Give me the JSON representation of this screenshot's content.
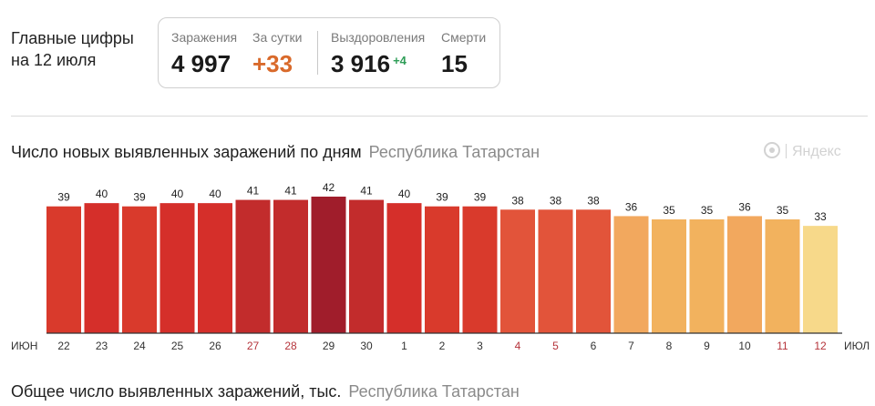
{
  "headline": {
    "line1": "Главные цифры",
    "line2": "на 12 июля"
  },
  "stats": {
    "infections": {
      "label": "Заражения",
      "value": "4 997"
    },
    "per_day": {
      "label": "За сутки",
      "value": "+33"
    },
    "recovered": {
      "label": "Выздоровления",
      "value": "3 916",
      "delta": "+4"
    },
    "deaths": {
      "label": "Смерти",
      "value": "15"
    }
  },
  "chart_header": {
    "title": "Число новых выявленных заражений по дням",
    "region": "Республика Татарстан"
  },
  "brand": {
    "name": "Яндекс"
  },
  "bottom_header": {
    "title": "Общее число выявленных заражений, тыс.",
    "region": "Республика Татарстан"
  },
  "chart_data": {
    "type": "bar",
    "month_start_label": "ИЮН",
    "month_end_label": "ИЮЛ",
    "categories": [
      "22",
      "23",
      "24",
      "25",
      "26",
      "27",
      "28",
      "29",
      "30",
      "1",
      "2",
      "3",
      "4",
      "5",
      "6",
      "7",
      "8",
      "9",
      "10",
      "11",
      "12"
    ],
    "values": [
      39,
      40,
      39,
      40,
      40,
      41,
      41,
      42,
      41,
      40,
      39,
      39,
      38,
      38,
      38,
      36,
      35,
      35,
      36,
      35,
      33
    ],
    "weekend_categories": [
      "27",
      "28",
      "4",
      "5",
      "11",
      "12"
    ],
    "colors": {
      "weekday_tick": "#333333",
      "weekend_tick": "#b5333a",
      "baseline": "#333333",
      "value_label": "#222222"
    },
    "bar_colors": [
      "#d93a2c",
      "#d52f2a",
      "#d93a2c",
      "#d52f2a",
      "#d52f2a",
      "#c22c2c",
      "#c22c2c",
      "#a01d2b",
      "#c22c2c",
      "#d52f2a",
      "#d93a2c",
      "#d93a2c",
      "#e2543a",
      "#e2543a",
      "#e2543a",
      "#f2a85e",
      "#f2b25e",
      "#f2b25e",
      "#f2a85e",
      "#f2b25e",
      "#f7d98a"
    ],
    "ylim": [
      0,
      42
    ]
  }
}
